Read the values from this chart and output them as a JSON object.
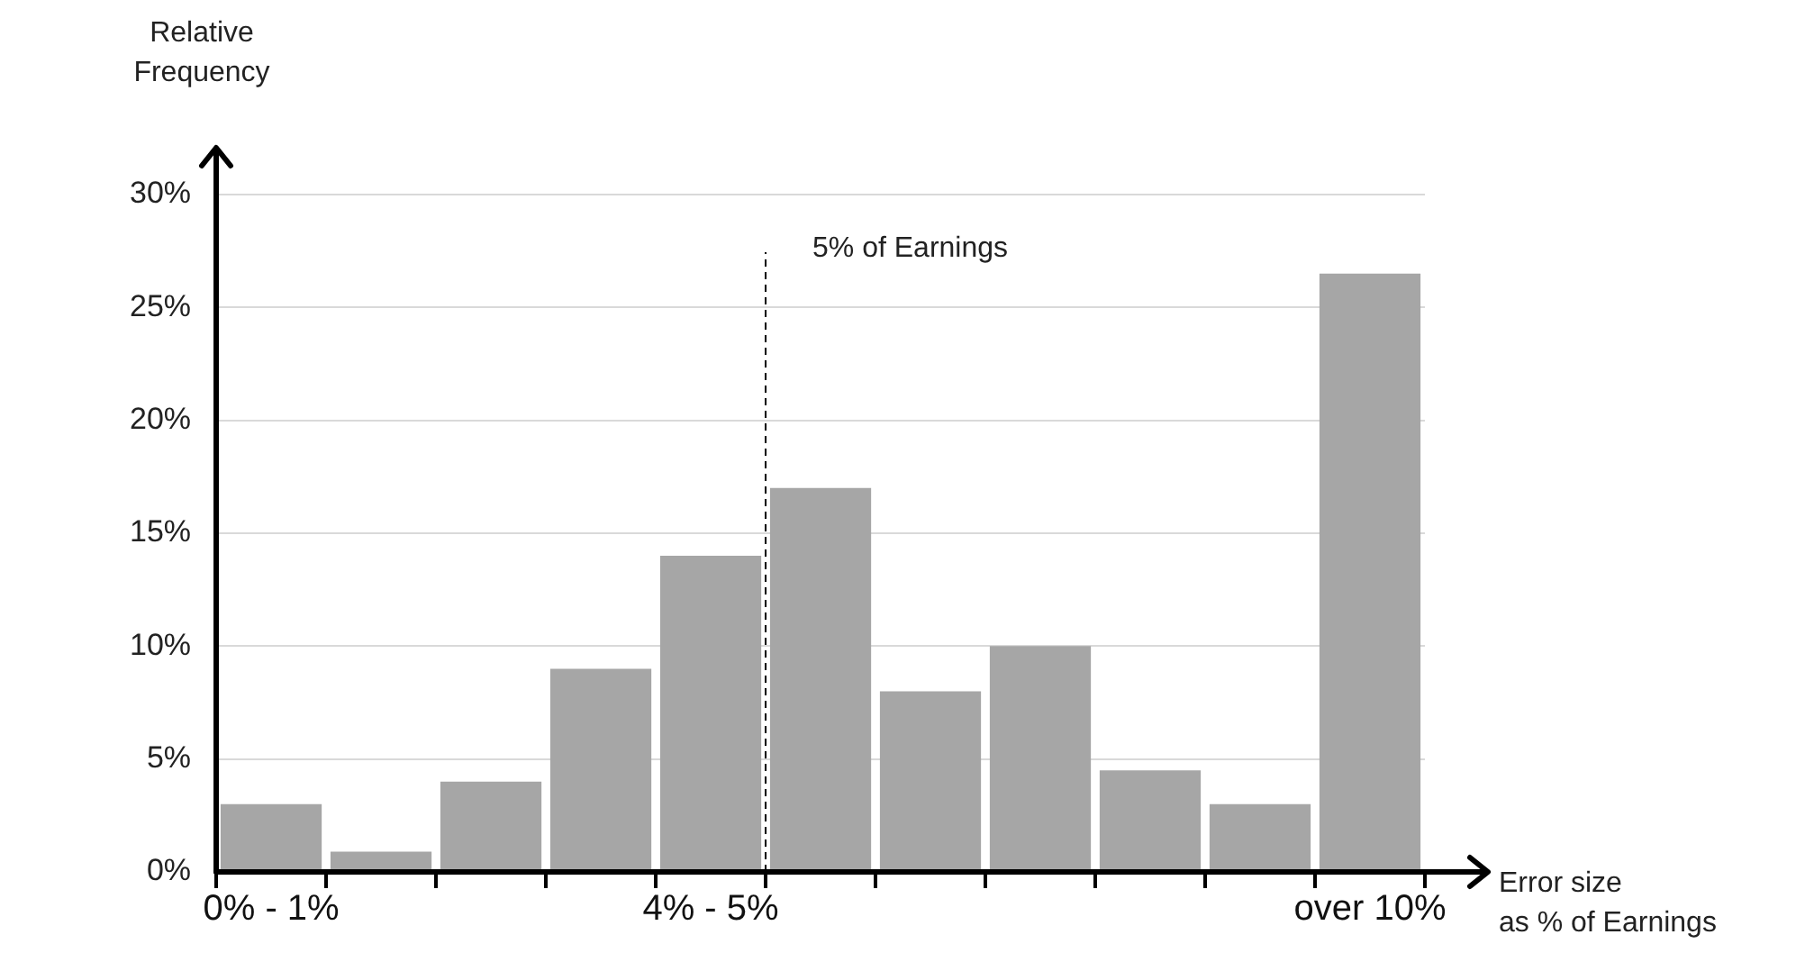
{
  "chart_data": {
    "type": "bar",
    "xlabel": "Error size\nas % of Earnings",
    "ylabel": "Relative\nFrequency",
    "categories": [
      "0% - 1%",
      null,
      null,
      null,
      "4% - 5%",
      null,
      null,
      null,
      null,
      null,
      "over 10%"
    ],
    "values": [
      3,
      0.9,
      4,
      9,
      14,
      17,
      8,
      10,
      4.5,
      3,
      26.5
    ],
    "color": "#a6a6a6",
    "ylim": [
      0,
      30
    ],
    "yticks": [
      {
        "value": 0,
        "label": "0%"
      },
      {
        "value": 5,
        "label": "5%"
      },
      {
        "value": 10,
        "label": "10%"
      },
      {
        "value": 15,
        "label": "15%"
      },
      {
        "value": 20,
        "label": "20%"
      },
      {
        "value": 25,
        "label": "25%"
      },
      {
        "value": 30,
        "label": "30%"
      }
    ],
    "grid": "y",
    "ref_lines": [
      {
        "axis": "x",
        "value": "4% - 5%",
        "label": "5% of Earnings",
        "line_style": "dashed",
        "color": "#000000"
      }
    ]
  }
}
